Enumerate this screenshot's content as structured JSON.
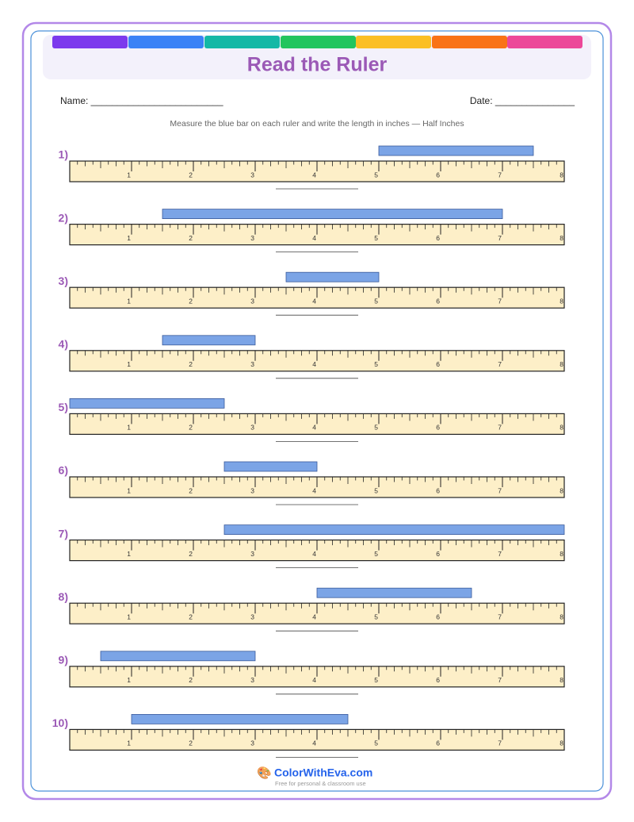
{
  "header": {
    "title": "Read the Ruler"
  },
  "fields": {
    "name": "Name: _________________________",
    "date": "Date: _______________"
  },
  "instructions": "Measure the blue bar on each ruler and write the length in inches — Half Inches",
  "ruler": {
    "min": 0,
    "max": 8,
    "ticks": [
      1,
      2,
      3,
      4,
      5,
      6,
      7,
      8
    ]
  },
  "problems": [
    {
      "label": "1)",
      "start": 5,
      "end": 7.5
    },
    {
      "label": "2)",
      "start": 1.5,
      "end": 7
    },
    {
      "label": "3)",
      "start": 3.5,
      "end": 5
    },
    {
      "label": "4)",
      "start": 1.5,
      "end": 3
    },
    {
      "label": "5)",
      "start": 0,
      "end": 2.5
    },
    {
      "label": "6)",
      "start": 2.5,
      "end": 4
    },
    {
      "label": "7)",
      "start": 2.5,
      "end": 8
    },
    {
      "label": "8)",
      "start": 4,
      "end": 6.5
    },
    {
      "label": "9)",
      "start": 0.5,
      "end": 3
    },
    {
      "label": "10)",
      "start": 1,
      "end": 4.5
    }
  ],
  "footer": {
    "brand": "ColorWithEva.com",
    "tagline": "Free for personal & classroom use"
  }
}
